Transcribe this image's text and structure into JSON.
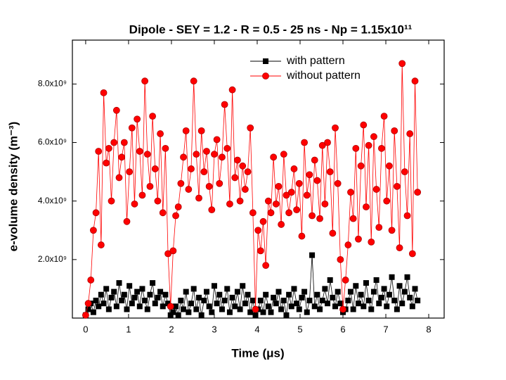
{
  "chart_data": {
    "type": "line-scatter",
    "title": "Dipole - SEY = 1.2 - R = 0.5 - 25 ns - Np = 1.15x10¹¹",
    "x_label": "Time (μs)",
    "y_label": "e-volume density (m⁻³)",
    "xlim": [
      -0.31,
      8.36
    ],
    "ylim": [
      0,
      9500000000.0
    ],
    "xticks": [
      0,
      1,
      2,
      3,
      4,
      5,
      6,
      7,
      8
    ],
    "yticks": [
      {
        "value": 2000000000.0,
        "label": "2.0x10⁹"
      },
      {
        "value": 4000000000.0,
        "label": "4.0x10⁹"
      },
      {
        "value": 6000000000.0,
        "label": "6.0x10⁹"
      },
      {
        "value": 8000000000.0,
        "label": "8.0x10⁹"
      }
    ],
    "legend": "top right",
    "x": [
      0,
      0.06,
      0.12,
      0.18,
      0.24,
      0.3,
      0.36,
      0.42,
      0.48,
      0.54,
      0.6,
      0.66,
      0.72,
      0.78,
      0.84,
      0.9,
      0.96,
      1.02,
      1.08,
      1.14,
      1.2,
      1.26,
      1.32,
      1.38,
      1.44,
      1.5,
      1.56,
      1.62,
      1.68,
      1.74,
      1.8,
      1.86,
      1.92,
      1.98,
      2.04,
      2.1,
      2.16,
      2.22,
      2.28,
      2.34,
      2.4,
      2.46,
      2.52,
      2.58,
      2.64,
      2.7,
      2.76,
      2.82,
      2.88,
      2.94,
      3,
      3.06,
      3.12,
      3.18,
      3.24,
      3.3,
      3.36,
      3.42,
      3.48,
      3.54,
      3.6,
      3.66,
      3.72,
      3.78,
      3.84,
      3.9,
      3.96,
      4.02,
      4.08,
      4.14,
      4.2,
      4.26,
      4.32,
      4.38,
      4.44,
      4.5,
      4.56,
      4.62,
      4.68,
      4.74,
      4.8,
      4.86,
      4.92,
      4.98,
      5.04,
      5.1,
      5.16,
      5.22,
      5.28,
      5.34,
      5.4,
      5.46,
      5.52,
      5.58,
      5.64,
      5.7,
      5.76,
      5.82,
      5.88,
      5.94,
      6,
      6.06,
      6.12,
      6.18,
      6.24,
      6.3,
      6.36,
      6.42,
      6.48,
      6.54,
      6.6,
      6.66,
      6.72,
      6.78,
      6.84,
      6.9,
      6.96,
      7.02,
      7.08,
      7.14,
      7.2,
      7.26,
      7.32,
      7.38,
      7.44,
      7.5,
      7.56,
      7.62,
      7.68,
      7.74
    ],
    "series": [
      {
        "name": "with pattern",
        "color": "#000000",
        "marker": "square",
        "values": [
          100000000.0,
          300000000.0,
          500000000.0,
          200000000.0,
          600000000.0,
          400000000.0,
          800000000.0,
          500000000.0,
          1000000000.0,
          300000000.0,
          700000000.0,
          900000000.0,
          400000000.0,
          1200000000.0,
          600000000.0,
          800000000.0,
          300000000.0,
          1100000000.0,
          500000000.0,
          700000000.0,
          900000000.0,
          400000000.0,
          1000000000.0,
          600000000.0,
          300000000.0,
          800000000.0,
          1200000000.0,
          500000000.0,
          700000000.0,
          900000000.0,
          400000000.0,
          800000000.0,
          500000000.0,
          100000000.0,
          200000000.0,
          400000000.0,
          100000000.0,
          600000000.0,
          300000000.0,
          900000000.0,
          200000000.0,
          500000000.0,
          1000000000.0,
          300000000.0,
          700000000.0,
          100000000.0,
          600000000.0,
          900000000.0,
          400000000.0,
          200000000.0,
          1100000000.0,
          500000000.0,
          800000000.0,
          300000000.0,
          600000000.0,
          1000000000.0,
          200000000.0,
          700000000.0,
          400000000.0,
          900000000.0,
          300000000.0,
          1100000000.0,
          500000000.0,
          800000000.0,
          200000000.0,
          600000000.0,
          100000000.0,
          300000000.0,
          600000000.0,
          200000000.0,
          800000000.0,
          400000000.0,
          200000000.0,
          700000000.0,
          500000000.0,
          900000000.0,
          300000000.0,
          600000000.0,
          100000000.0,
          800000000.0,
          400000000.0,
          1000000000.0,
          500000000.0,
          300000000.0,
          700000000.0,
          900000000.0,
          200000000.0,
          600000000.0,
          2150000000.0,
          400000000.0,
          800000000.0,
          300000000.0,
          600000000.0,
          1000000000.0,
          500000000.0,
          1300000000.0,
          700000000.0,
          400000000.0,
          900000000.0,
          500000000.0,
          200000000.0,
          300000000.0,
          600000000.0,
          900000000.0,
          300000000.0,
          1100000000.0,
          500000000.0,
          800000000.0,
          400000000.0,
          1200000000.0,
          600000000.0,
          300000000.0,
          900000000.0,
          1300000000.0,
          500000000.0,
          700000000.0,
          1000000000.0,
          400000000.0,
          800000000.0,
          1400000000.0,
          600000000.0,
          300000000.0,
          1100000000.0,
          500000000.0,
          900000000.0,
          1400000000.0,
          700000000.0,
          400000000.0,
          1000000000.0,
          600000000.0
        ]
      },
      {
        "name": "without pattern",
        "color": "#ff0000",
        "marker": "circle",
        "values": [
          100000000.0,
          500000000.0,
          1300000000.0,
          3000000000.0,
          3600000000.0,
          5700000000.0,
          2500000000.0,
          7700000000.0,
          5300000000.0,
          5800000000.0,
          4000000000.0,
          6000000000.0,
          7100000000.0,
          4800000000.0,
          5500000000.0,
          6000000000.0,
          3300000000.0,
          5000000000.0,
          6500000000.0,
          3900000000.0,
          6800000000.0,
          5700000000.0,
          4200000000.0,
          8100000000.0,
          5600000000.0,
          4500000000.0,
          6900000000.0,
          5100000000.0,
          4000000000.0,
          6300000000.0,
          3600000000.0,
          5800000000.0,
          2200000000.0,
          400000000.0,
          2300000000.0,
          3500000000.0,
          3800000000.0,
          4600000000.0,
          5500000000.0,
          6400000000.0,
          4400000000.0,
          5100000000.0,
          8100000000.0,
          5600000000.0,
          4100000000.0,
          6400000000.0,
          5000000000.0,
          5700000000.0,
          4500000000.0,
          3700000000.0,
          5600000000.0,
          6100000000.0,
          4600000000.0,
          5500000000.0,
          7300000000.0,
          5800000000.0,
          3900000000.0,
          7800000000.0,
          4800000000.0,
          5400000000.0,
          4000000000.0,
          5200000000.0,
          4400000000.0,
          5000000000.0,
          6500000000.0,
          3600000000.0,
          300000000.0,
          3000000000.0,
          2300000000.0,
          3300000000.0,
          1800000000.0,
          4000000000.0,
          3600000000.0,
          5500000000.0,
          3900000000.0,
          4500000000.0,
          3200000000.0,
          5600000000.0,
          4200000000.0,
          3600000000.0,
          4300000000.0,
          5100000000.0,
          3700000000.0,
          4600000000.0,
          2800000000.0,
          6000000000.0,
          4200000000.0,
          4900000000.0,
          3500000000.0,
          5400000000.0,
          4700000000.0,
          3400000000.0,
          5900000000.0,
          3900000000.0,
          6000000000.0,
          5000000000.0,
          2900000000.0,
          6500000000.0,
          4600000000.0,
          2000000000.0,
          300000000.0,
          1300000000.0,
          2500000000.0,
          4300000000.0,
          3400000000.0,
          5800000000.0,
          2700000000.0,
          5200000000.0,
          6600000000.0,
          3800000000.0,
          5900000000.0,
          2600000000.0,
          6200000000.0,
          4400000000.0,
          3100000000.0,
          5800000000.0,
          6900000000.0,
          4000000000.0,
          5200000000.0,
          3000000000.0,
          6400000000.0,
          4500000000.0,
          2400000000.0,
          8700000000.0,
          5000000000.0,
          3500000000.0,
          6300000000.0,
          2200000000.0,
          8100000000.0,
          4300000000.0
        ]
      }
    ]
  }
}
